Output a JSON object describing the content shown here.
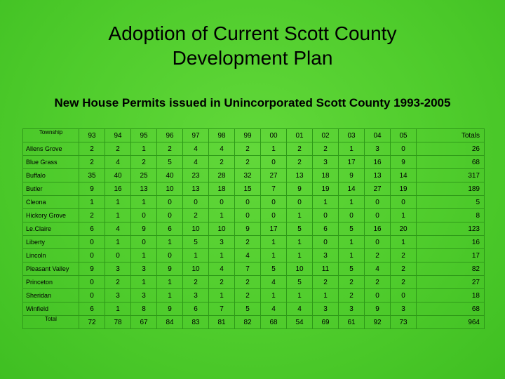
{
  "title_line1": "Adoption of Current Scott County",
  "title_line2": "Development Plan",
  "subtitle": "New House Permits issued in Unincorporated Scott County 1993-2005",
  "table": {
    "corner_label": "Township",
    "years": [
      "93",
      "94",
      "95",
      "96",
      "97",
      "98",
      "99",
      "00",
      "01",
      "02",
      "03",
      "04",
      "05"
    ],
    "totals_label": "Totals",
    "rows": [
      {
        "name": "Allens Grove",
        "values": [
          "2",
          "2",
          "1",
          "2",
          "4",
          "4",
          "2",
          "1",
          "2",
          "2",
          "1",
          "3",
          "0"
        ],
        "total": "26"
      },
      {
        "name": "Blue Grass",
        "values": [
          "2",
          "4",
          "2",
          "5",
          "4",
          "2",
          "2",
          "0",
          "2",
          "3",
          "17",
          "16",
          "9"
        ],
        "total": "68"
      },
      {
        "name": "Buffalo",
        "values": [
          "35",
          "40",
          "25",
          "40",
          "23",
          "28",
          "32",
          "27",
          "13",
          "18",
          "9",
          "13",
          "14"
        ],
        "total": "317"
      },
      {
        "name": "Butler",
        "values": [
          "9",
          "16",
          "13",
          "10",
          "13",
          "18",
          "15",
          "7",
          "9",
          "19",
          "14",
          "27",
          "19"
        ],
        "total": "189"
      },
      {
        "name": "Cleona",
        "values": [
          "1",
          "1",
          "1",
          "0",
          "0",
          "0",
          "0",
          "0",
          "0",
          "1",
          "1",
          "0",
          "0"
        ],
        "total": "5"
      },
      {
        "name": "Hickory Grove",
        "values": [
          "2",
          "1",
          "0",
          "0",
          "2",
          "1",
          "0",
          "0",
          "1",
          "0",
          "0",
          "0",
          "1"
        ],
        "total": "8"
      },
      {
        "name": "Le.Claire",
        "values": [
          "6",
          "4",
          "9",
          "6",
          "10",
          "10",
          "9",
          "17",
          "5",
          "6",
          "5",
          "16",
          "20"
        ],
        "total": "123"
      },
      {
        "name": "Liberty",
        "values": [
          "0",
          "1",
          "0",
          "1",
          "5",
          "3",
          "2",
          "1",
          "1",
          "0",
          "1",
          "0",
          "1"
        ],
        "total": "16"
      },
      {
        "name": "Lincoln",
        "values": [
          "0",
          "0",
          "1",
          "0",
          "1",
          "1",
          "4",
          "1",
          "1",
          "3",
          "1",
          "2",
          "2"
        ],
        "total": "17"
      },
      {
        "name": "Pleasant Valley",
        "values": [
          "9",
          "3",
          "3",
          "9",
          "10",
          "4",
          "7",
          "5",
          "10",
          "11",
          "5",
          "4",
          "2"
        ],
        "total": "82"
      },
      {
        "name": "Princeton",
        "values": [
          "0",
          "2",
          "1",
          "1",
          "2",
          "2",
          "2",
          "4",
          "5",
          "2",
          "2",
          "2",
          "2"
        ],
        "total": "27"
      },
      {
        "name": "Sheridan",
        "values": [
          "0",
          "3",
          "3",
          "1",
          "3",
          "1",
          "2",
          "1",
          "1",
          "1",
          "2",
          "0",
          "0"
        ],
        "total": "18"
      },
      {
        "name": "Winfield",
        "values": [
          "6",
          "1",
          "8",
          "9",
          "6",
          "7",
          "5",
          "4",
          "4",
          "3",
          "3",
          "9",
          "3"
        ],
        "total": "68"
      }
    ],
    "total_row": {
      "name": "Total",
      "values": [
        "72",
        "78",
        "67",
        "84",
        "83",
        "81",
        "82",
        "68",
        "54",
        "69",
        "61",
        "92",
        "73"
      ],
      "total": "964"
    }
  }
}
